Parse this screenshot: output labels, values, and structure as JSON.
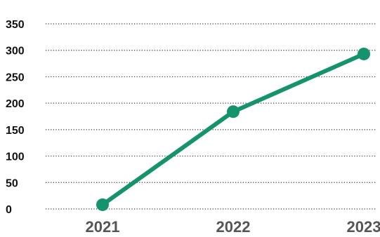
{
  "chart_data": {
    "type": "line",
    "title": "",
    "xlabel": "",
    "ylabel": "",
    "x": [
      "2021",
      "2022",
      "2023"
    ],
    "series": [
      {
        "values": [
          8,
          184,
          293
        ]
      }
    ],
    "ylim": [
      0,
      350
    ],
    "yticks": [
      "0",
      "50",
      "100",
      "150",
      "200",
      "250",
      "300",
      "350"
    ],
    "grid": true,
    "grid_style": "dotted",
    "legend": "none",
    "colors": {
      "line": "#14936c",
      "grid": "#333333",
      "ytick_text": "#111111",
      "xtick_text": "#555555"
    }
  }
}
